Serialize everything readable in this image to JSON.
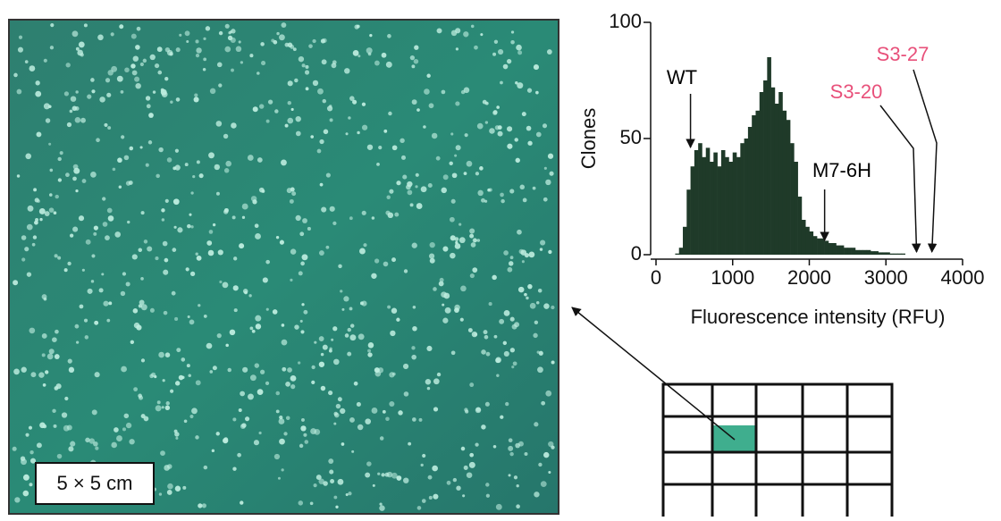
{
  "photo": {
    "scale_label": "5 × 5 cm"
  },
  "chart_data": {
    "type": "histogram",
    "ylabel": "Clones",
    "xlabel": "Fluorescence intensity (RFU)",
    "xlim": [
      0,
      4000
    ],
    "ylim": [
      0,
      100
    ],
    "xticks": [
      0,
      1000,
      2000,
      3000,
      4000
    ],
    "yticks": [
      0,
      50,
      100
    ],
    "color": "#1f3a29",
    "bins": [
      250,
      300,
      350,
      400,
      450,
      500,
      550,
      600,
      650,
      700,
      750,
      800,
      850,
      900,
      950,
      1000,
      1050,
      1100,
      1150,
      1200,
      1250,
      1300,
      1350,
      1400,
      1450,
      1500,
      1550,
      1600,
      1650,
      1700,
      1750,
      1800,
      1850,
      1900,
      1950,
      2000,
      2050,
      2100,
      2150,
      2200,
      2250,
      2300,
      2350,
      2400,
      2450,
      2500,
      2550,
      2600,
      2650,
      2700,
      2750,
      2800,
      2850,
      2900,
      2950,
      3000,
      3050,
      3100,
      3150,
      3200,
      3250
    ],
    "values": [
      0.5,
      3,
      12,
      28,
      38,
      45,
      48,
      42,
      46,
      40,
      44,
      38,
      45,
      42,
      40,
      44,
      42,
      48,
      50,
      55,
      60,
      62,
      70,
      75,
      85,
      72,
      65,
      70,
      62,
      58,
      48,
      40,
      25,
      15,
      12,
      10,
      8,
      7,
      7,
      6,
      5,
      5,
      4,
      4,
      3,
      3,
      3,
      2,
      2,
      2,
      2,
      1.5,
      1.5,
      1,
      1,
      1,
      0.5,
      0.5,
      0.5,
      0.5
    ],
    "annotations": [
      {
        "text": "WT",
        "x": 450,
        "y": 45,
        "color": "#000000"
      },
      {
        "text": "M7-6H",
        "x": 2200,
        "y": 5,
        "color": "#000000"
      },
      {
        "text": "S3-20",
        "x": 3400,
        "y": 0,
        "color": "#e8507a"
      },
      {
        "text": "S3-27",
        "x": 3600,
        "y": 0,
        "color": "#e8507a"
      }
    ]
  }
}
